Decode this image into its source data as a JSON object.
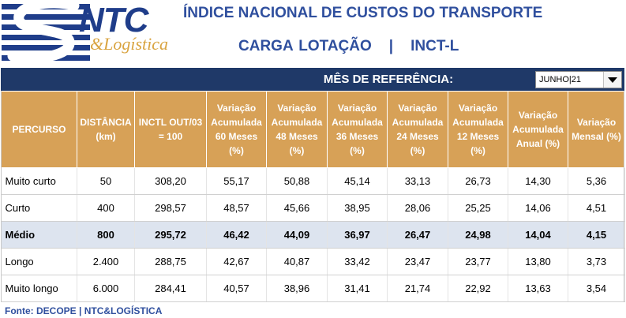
{
  "logo": {
    "brand": "NTC",
    "subtitle": "&Logística"
  },
  "header": {
    "title": "ÍNDICE NACIONAL DE CUSTOS DO TRANSPORTE",
    "subtitle_left": "CARGA LOTAÇÃO",
    "subtitle_sep": "|",
    "subtitle_right": "INCT-L"
  },
  "reference": {
    "label": "MÊS DE REFERÊNCIA:",
    "selected": "JUNHO|21"
  },
  "table": {
    "headers": [
      "PERCURSO",
      "DISTÂNCIA (km)",
      "INCTL OUT/03 = 100",
      "Variação Acumulada 60 Meses (%)",
      "Variação Acumulada 48 Meses (%)",
      "Variação Acumulada 36 Meses (%)",
      "Variação Acumulada 24 Meses (%)",
      "Variação Acumulada 12 Meses (%)",
      "Variação Acumulada Anual  (%)",
      "Variação Mensal (%)"
    ],
    "rows": [
      [
        "Muito curto",
        "50",
        "308,20",
        "55,17",
        "50,88",
        "45,14",
        "33,13",
        "26,73",
        "14,30",
        "5,36"
      ],
      [
        "Curto",
        "400",
        "298,57",
        "48,57",
        "45,66",
        "38,95",
        "28,06",
        "25,25",
        "14,06",
        "4,51"
      ],
      [
        "Médio",
        "800",
        "295,72",
        "46,42",
        "44,09",
        "36,97",
        "26,47",
        "24,98",
        "14,04",
        "4,15"
      ],
      [
        "Longo",
        "2.400",
        "288,75",
        "42,67",
        "40,87",
        "33,42",
        "23,47",
        "23,77",
        "13,80",
        "3,73"
      ],
      [
        "Muito longo",
        "6.000",
        "284,41",
        "40,57",
        "38,96",
        "31,41",
        "21,74",
        "22,92",
        "13,63",
        "3,54"
      ]
    ]
  },
  "footer": {
    "source": "Fonte: DECOPE | NTC&LOGÍSTICA"
  },
  "colors": {
    "title_blue": "#2f4f9e",
    "bar_navy": "#1f3968",
    "header_gold": "#d7a157",
    "highlight_row": "#dde4ef"
  }
}
